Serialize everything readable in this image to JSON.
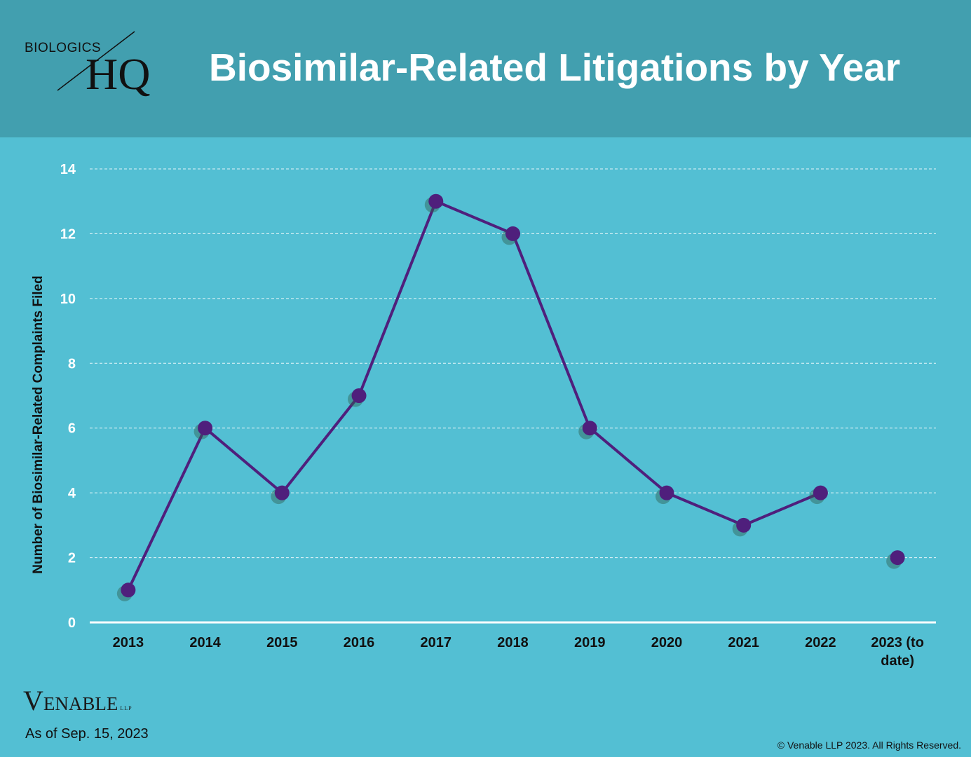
{
  "header": {
    "logo": {
      "word": "BIOLOGICS",
      "mark": "HQ"
    },
    "title": "Biosimilar-Related Litigations by Year",
    "background_color": "#429faf"
  },
  "chart_data": {
    "type": "line",
    "title": "Biosimilar-Related Litigations by Year",
    "xlabel": "",
    "ylabel": "Number of Biosimilar-Related  Complaints Filed",
    "categories": [
      "2013",
      "2014",
      "2015",
      "2016",
      "2017",
      "2018",
      "2019",
      "2020",
      "2021",
      "2022",
      "2023 (to date)"
    ],
    "series": [
      {
        "values": [
          1,
          6,
          4,
          7,
          13,
          12,
          6,
          4,
          3,
          4,
          2
        ],
        "color": "#4f1f7c"
      }
    ],
    "connected_points": 10,
    "ylim": [
      0,
      14
    ],
    "yticks": [
      0,
      2,
      4,
      6,
      8,
      10,
      12,
      14
    ],
    "grid": true,
    "legend": "none",
    "background_color": "#53bfd3"
  },
  "footer": {
    "brand": {
      "first": "V",
      "rest": "ENABLE",
      "suffix": "LLP"
    },
    "as_of": "As of Sep. 15, 2023",
    "copyright": "© Venable LLP 2023. All Rights Reserved."
  }
}
